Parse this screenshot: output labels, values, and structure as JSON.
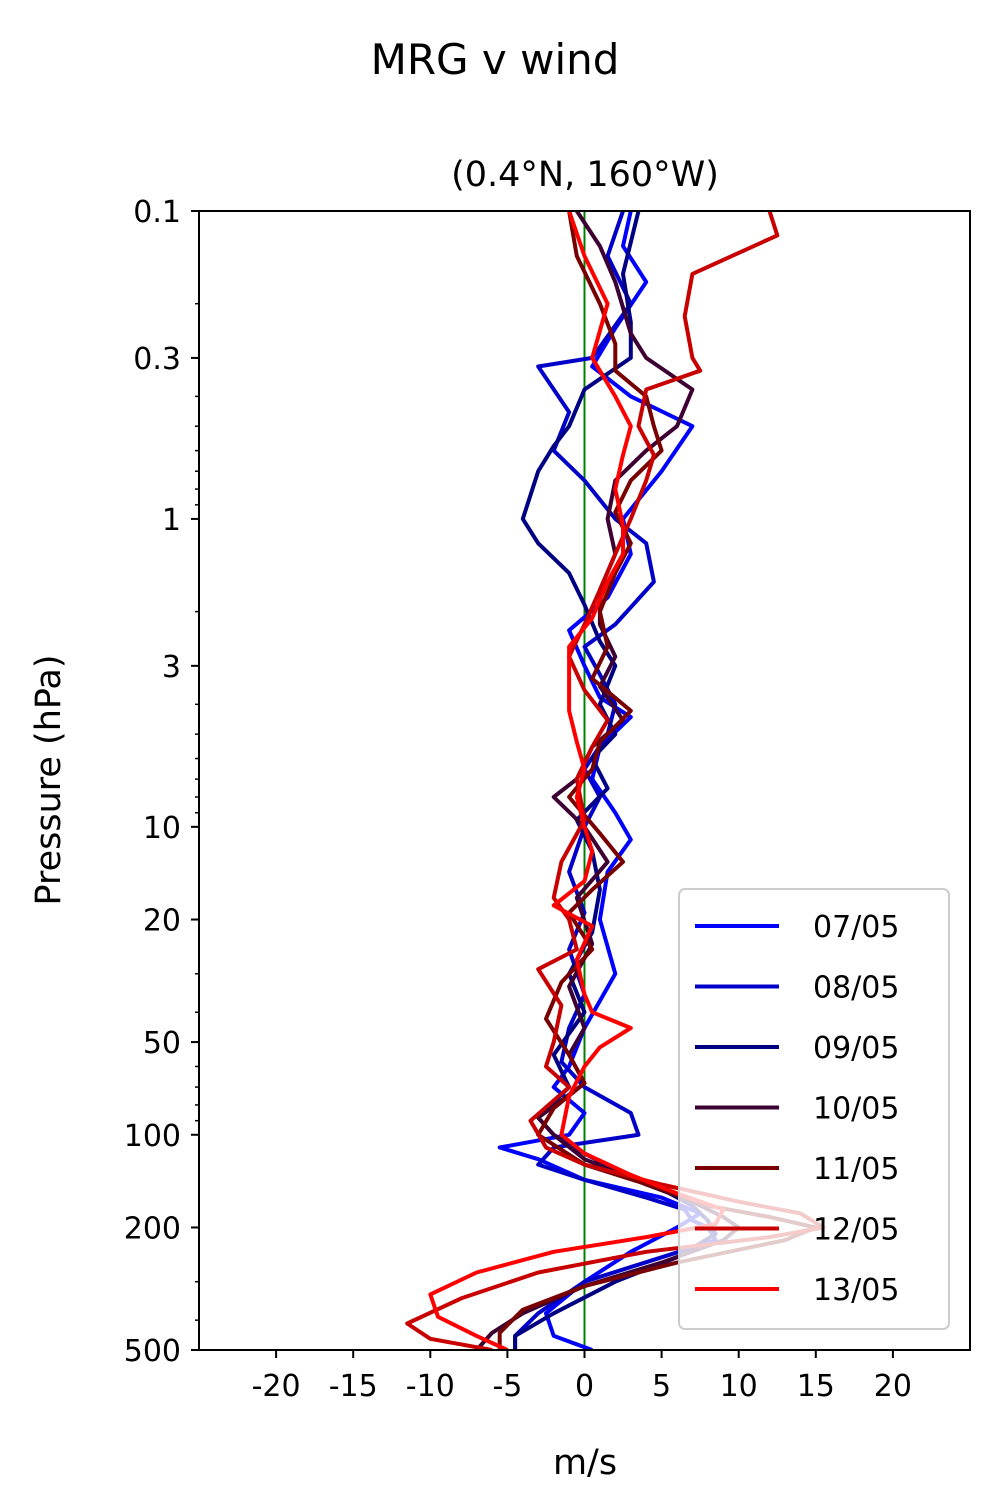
{
  "chart_data": {
    "type": "line",
    "title": "MRG v wind",
    "subtitle": "(0.4°N, 160°W)",
    "xlabel": "m/s",
    "ylabel": "Pressure (hPa)",
    "xlim": [
      -25,
      25
    ],
    "ylim": [
      500,
      0.1
    ],
    "yscale": "log",
    "x_ticks": [
      -20,
      -15,
      -10,
      -5,
      0,
      5,
      10,
      15,
      20
    ],
    "x_tick_labels": [
      "-20",
      "-15",
      "-10",
      "-5",
      "0",
      "5",
      "10",
      "15",
      "20"
    ],
    "y_ticks": [
      0.1,
      0.3,
      1,
      3,
      10,
      20,
      50,
      100,
      200,
      500
    ],
    "y_tick_labels": [
      "0.1",
      "0.3",
      "1",
      "3",
      "10",
      "20",
      "50",
      "100",
      "200",
      "500"
    ],
    "legend_position": "lower right",
    "reference_line": {
      "x": 0,
      "color": "#008000"
    },
    "series": [
      {
        "name": "07/05",
        "color": "#0000ff",
        "points": [
          [
            3,
            0.1
          ],
          [
            2.5,
            0.13
          ],
          [
            4,
            0.17
          ],
          [
            2,
            0.24
          ],
          [
            0.5,
            0.32
          ],
          [
            3,
            0.4
          ],
          [
            7,
            0.5
          ],
          [
            5,
            0.7
          ],
          [
            2.5,
            1
          ],
          [
            3,
            1.3
          ],
          [
            1.5,
            1.8
          ],
          [
            -1,
            2.3
          ],
          [
            0,
            3
          ],
          [
            1,
            3.8
          ],
          [
            3,
            4.4
          ],
          [
            1,
            5.5
          ],
          [
            0.5,
            7
          ],
          [
            2,
            9
          ],
          [
            3,
            11
          ],
          [
            1.5,
            14
          ],
          [
            1,
            20
          ],
          [
            2,
            30
          ],
          [
            0,
            45
          ],
          [
            -1,
            60
          ],
          [
            -2,
            70
          ],
          [
            0,
            85
          ],
          [
            -1,
            100
          ],
          [
            -5.5,
            110
          ],
          [
            -3,
            120
          ],
          [
            0,
            140
          ],
          [
            5,
            160
          ],
          [
            7.5,
            180
          ],
          [
            6,
            200
          ],
          [
            3,
            240
          ],
          [
            0,
            300
          ],
          [
            -2.5,
            380
          ],
          [
            -2,
            450
          ],
          [
            0.5,
            500
          ]
        ]
      },
      {
        "name": "08/05",
        "color": "#0000c8",
        "points": [
          [
            2.5,
            0.1
          ],
          [
            1.5,
            0.14
          ],
          [
            3,
            0.2
          ],
          [
            0.5,
            0.3
          ],
          [
            -3,
            0.32
          ],
          [
            -1,
            0.45
          ],
          [
            -2,
            0.6
          ],
          [
            0,
            0.75
          ],
          [
            2,
            1
          ],
          [
            4,
            1.2
          ],
          [
            4.5,
            1.6
          ],
          [
            2,
            2.2
          ],
          [
            0,
            2.6
          ],
          [
            1,
            3.2
          ],
          [
            2,
            4
          ],
          [
            1.5,
            5
          ],
          [
            0,
            6.5
          ],
          [
            1,
            8
          ],
          [
            0,
            10
          ],
          [
            -1,
            14
          ],
          [
            0,
            19
          ],
          [
            -1,
            25
          ],
          [
            0,
            35
          ],
          [
            -1,
            45
          ],
          [
            -1.5,
            58
          ],
          [
            0,
            70
          ],
          [
            3,
            85
          ],
          [
            3.5,
            100
          ],
          [
            -2,
            110
          ],
          [
            -3,
            125
          ],
          [
            0,
            140
          ],
          [
            4,
            160
          ],
          [
            6.5,
            175
          ],
          [
            7,
            190
          ],
          [
            8,
            200
          ],
          [
            8.5,
            220
          ],
          [
            5,
            250
          ],
          [
            0,
            300
          ],
          [
            -3,
            380
          ],
          [
            -4.5,
            450
          ],
          [
            -4.5,
            500
          ]
        ]
      },
      {
        "name": "09/05",
        "color": "#000082",
        "points": [
          [
            3.5,
            0.1
          ],
          [
            2.5,
            0.16
          ],
          [
            3,
            0.23
          ],
          [
            3,
            0.3
          ],
          [
            0,
            0.38
          ],
          [
            -1,
            0.5
          ],
          [
            -2,
            0.58
          ],
          [
            -3,
            0.7
          ],
          [
            -4,
            1
          ],
          [
            -3,
            1.2
          ],
          [
            -1,
            1.5
          ],
          [
            0,
            1.9
          ],
          [
            1,
            2.5
          ],
          [
            2,
            3
          ],
          [
            1,
            4
          ],
          [
            2,
            5
          ],
          [
            0.5,
            6
          ],
          [
            1.5,
            7.5
          ],
          [
            -0.5,
            9.5
          ],
          [
            0.5,
            12
          ],
          [
            1,
            16
          ],
          [
            0.5,
            22
          ],
          [
            -1,
            30
          ],
          [
            0,
            40
          ],
          [
            -2,
            55
          ],
          [
            -1,
            70
          ],
          [
            -3,
            88
          ],
          [
            -2,
            100
          ],
          [
            0,
            115
          ],
          [
            2,
            130
          ],
          [
            5,
            150
          ],
          [
            7,
            170
          ],
          [
            8,
            190
          ],
          [
            8.5,
            210
          ],
          [
            6,
            250
          ],
          [
            2,
            300
          ],
          [
            -2,
            380
          ],
          [
            -4.5,
            450
          ],
          [
            -4.5,
            500
          ]
        ]
      },
      {
        "name": "10/05",
        "color": "#3c0032",
        "points": [
          [
            -0.5,
            0.1
          ],
          [
            1,
            0.13
          ],
          [
            2,
            0.17
          ],
          [
            3,
            0.25
          ],
          [
            4,
            0.3
          ],
          [
            7,
            0.38
          ],
          [
            6,
            0.5
          ],
          [
            4,
            0.6
          ],
          [
            2,
            0.75
          ],
          [
            1.5,
            1
          ],
          [
            2,
            1.3
          ],
          [
            1,
            1.7
          ],
          [
            1,
            2.2
          ],
          [
            2,
            2.8
          ],
          [
            1,
            3.5
          ],
          [
            2.5,
            4.5
          ],
          [
            0.5,
            5.5
          ],
          [
            -0.5,
            7
          ],
          [
            -2,
            8
          ],
          [
            0,
            10
          ],
          [
            1.5,
            13
          ],
          [
            -0.5,
            17
          ],
          [
            0.5,
            24
          ],
          [
            -1,
            33
          ],
          [
            0,
            45
          ],
          [
            -1,
            55
          ],
          [
            0,
            68
          ],
          [
            -3,
            88
          ],
          [
            -2,
            100
          ],
          [
            0,
            120
          ],
          [
            4,
            145
          ],
          [
            7,
            165
          ],
          [
            9,
            185
          ],
          [
            10,
            200
          ],
          [
            9,
            220
          ],
          [
            5,
            260
          ],
          [
            0,
            310
          ],
          [
            -4,
            380
          ],
          [
            -6,
            440
          ],
          [
            -7,
            500
          ]
        ]
      },
      {
        "name": "11/05",
        "color": "#780000",
        "points": [
          [
            -1,
            0.1
          ],
          [
            -0.5,
            0.14
          ],
          [
            1,
            0.2
          ],
          [
            2,
            0.27
          ],
          [
            2,
            0.33
          ],
          [
            4,
            0.4
          ],
          [
            4.5,
            0.5
          ],
          [
            5,
            0.6
          ],
          [
            3,
            0.75
          ],
          [
            2,
            0.95
          ],
          [
            3,
            1.2
          ],
          [
            2,
            1.5
          ],
          [
            1,
            2
          ],
          [
            1.5,
            2.6
          ],
          [
            0.5,
            3.3
          ],
          [
            3,
            4.2
          ],
          [
            1,
            5.3
          ],
          [
            0.5,
            6.5
          ],
          [
            -1,
            8
          ],
          [
            1,
            10.5
          ],
          [
            2.5,
            13
          ],
          [
            0.5,
            16
          ],
          [
            -1,
            19
          ],
          [
            0.5,
            25
          ],
          [
            -1.5,
            32
          ],
          [
            -2.5,
            42
          ],
          [
            -1,
            55
          ],
          [
            0,
            68
          ],
          [
            -2,
            82
          ],
          [
            -3,
            100
          ],
          [
            0,
            125
          ],
          [
            5,
            150
          ],
          [
            8,
            170
          ],
          [
            12,
            185
          ],
          [
            15,
            200
          ],
          [
            13,
            220
          ],
          [
            6,
            260
          ],
          [
            0,
            310
          ],
          [
            -4,
            370
          ],
          [
            -5.5,
            440
          ],
          [
            -5.5,
            500
          ]
        ]
      },
      {
        "name": "12/05",
        "color": "#c80000",
        "points": [
          [
            12,
            0.1
          ],
          [
            12.5,
            0.12
          ],
          [
            7,
            0.16
          ],
          [
            6.5,
            0.22
          ],
          [
            7,
            0.3
          ],
          [
            7.5,
            0.33
          ],
          [
            4,
            0.38
          ],
          [
            3.5,
            0.5
          ],
          [
            4.5,
            0.62
          ],
          [
            4,
            0.75
          ],
          [
            3,
            1
          ],
          [
            2,
            1.3
          ],
          [
            1,
            1.7
          ],
          [
            0,
            2.2
          ],
          [
            -1,
            2.8
          ],
          [
            0,
            3.6
          ],
          [
            1.5,
            4.5
          ],
          [
            0.5,
            5.5
          ],
          [
            -0.5,
            7
          ],
          [
            0,
            9.5
          ],
          [
            -1.5,
            13
          ],
          [
            -2,
            17
          ],
          [
            -1,
            20
          ],
          [
            -0.5,
            25
          ],
          [
            -3,
            29
          ],
          [
            -1.5,
            38
          ],
          [
            -2,
            50
          ],
          [
            -2.5,
            60
          ],
          [
            -1,
            70
          ],
          [
            -3.5,
            90
          ],
          [
            -2.5,
            110
          ],
          [
            0,
            125
          ],
          [
            5,
            145
          ],
          [
            10,
            165
          ],
          [
            14,
            180
          ],
          [
            15.5,
            200
          ],
          [
            12,
            215
          ],
          [
            4,
            240
          ],
          [
            -3,
            280
          ],
          [
            -8,
            340
          ],
          [
            -11.5,
            410
          ],
          [
            -10,
            460
          ],
          [
            -6,
            500
          ]
        ]
      },
      {
        "name": "13/05",
        "color": "#ff0000",
        "points": [
          [
            -1,
            0.1
          ],
          [
            0,
            0.14
          ],
          [
            1.5,
            0.2
          ],
          [
            0.5,
            0.3
          ],
          [
            2,
            0.4
          ],
          [
            3,
            0.5
          ],
          [
            2.5,
            0.62
          ],
          [
            2,
            0.8
          ],
          [
            2.5,
            1.05
          ],
          [
            2.5,
            1.3
          ],
          [
            1.5,
            1.6
          ],
          [
            0.5,
            2.1
          ],
          [
            -1,
            2.6
          ],
          [
            -1,
            3.2
          ],
          [
            -1,
            4.2
          ],
          [
            -0.5,
            5.3
          ],
          [
            0,
            6.5
          ],
          [
            -0.5,
            8
          ],
          [
            0,
            10
          ],
          [
            0.5,
            12
          ],
          [
            0,
            15
          ],
          [
            -2,
            18
          ],
          [
            0.5,
            21
          ],
          [
            -0.5,
            27
          ],
          [
            0,
            35
          ],
          [
            0.5,
            40
          ],
          [
            3,
            45
          ],
          [
            1,
            52
          ],
          [
            0,
            60
          ],
          [
            -1,
            75
          ],
          [
            -1.5,
            100
          ],
          [
            0,
            115
          ],
          [
            3,
            135
          ],
          [
            6,
            155
          ],
          [
            9,
            175
          ],
          [
            8.5,
            195
          ],
          [
            4,
            215
          ],
          [
            -2,
            240
          ],
          [
            -7,
            280
          ],
          [
            -10,
            330
          ],
          [
            -9.5,
            390
          ],
          [
            -7,
            450
          ],
          [
            -5,
            500
          ]
        ]
      }
    ]
  }
}
